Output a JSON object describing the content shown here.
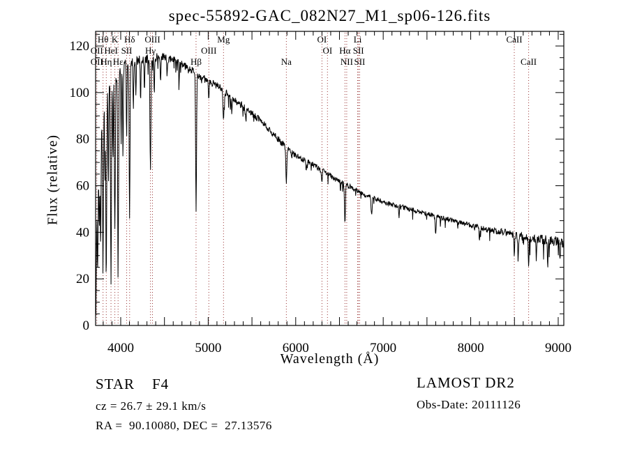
{
  "chart_data": {
    "type": "line",
    "title": "spec-55892-GAC_082N27_M1_sp06-126.fits",
    "xlabel": "Wavelength (Å)",
    "ylabel": "Flux (relative)",
    "x_range": [
      3713,
      9064
    ],
    "y_range": [
      0,
      126
    ],
    "x_ticks": [
      4000,
      5000,
      6000,
      7000,
      8000,
      9000
    ],
    "x_minor_tick_step": 100,
    "y_ticks": [
      0,
      20,
      40,
      60,
      80,
      100,
      120
    ],
    "y_minor_tick_step": 5,
    "grid": false,
    "legend": "none",
    "series_color": "#000000",
    "marker_line_color": "#993333",
    "background_color": "#ffffff",
    "continuum_anchors": [
      [
        3713,
        42,
        22
      ],
      [
        3725,
        55,
        18
      ],
      [
        3745,
        68,
        14
      ],
      [
        3775,
        82,
        13
      ],
      [
        3805,
        95,
        12
      ],
      [
        3840,
        101,
        11
      ],
      [
        3880,
        104,
        10
      ],
      [
        3920,
        107,
        9
      ],
      [
        3960,
        108,
        8
      ],
      [
        4000,
        110,
        7
      ],
      [
        4060,
        112,
        6
      ],
      [
        4120,
        113,
        6
      ],
      [
        4200,
        114,
        5.5
      ],
      [
        4300,
        114.5,
        5.5
      ],
      [
        4400,
        115,
        5.5
      ],
      [
        4500,
        115,
        5
      ],
      [
        4600,
        114,
        4.5
      ],
      [
        4700,
        112,
        4.5
      ],
      [
        4800,
        110,
        4.5
      ],
      [
        4900,
        107,
        4.5
      ],
      [
        5000,
        105,
        4.5
      ],
      [
        5100,
        103,
        4.5
      ],
      [
        5200,
        100,
        4.5
      ],
      [
        5300,
        97,
        4.5
      ],
      [
        5400,
        94,
        4.5
      ],
      [
        5500,
        91,
        4
      ],
      [
        5600,
        88,
        4
      ],
      [
        5700,
        84,
        4
      ],
      [
        5800,
        80,
        4
      ],
      [
        5900,
        76,
        4
      ],
      [
        6000,
        73,
        3.5
      ],
      [
        6100,
        71,
        3.5
      ],
      [
        6200,
        69,
        3.5
      ],
      [
        6300,
        66.5,
        3.5
      ],
      [
        6400,
        64,
        3.5
      ],
      [
        6500,
        62,
        3
      ],
      [
        6600,
        60,
        3
      ],
      [
        6700,
        58,
        3
      ],
      [
        6800,
        56,
        3
      ],
      [
        6900,
        54.5,
        3
      ],
      [
        7000,
        53,
        3
      ],
      [
        7100,
        52,
        3
      ],
      [
        7200,
        51,
        3
      ],
      [
        7300,
        50,
        3
      ],
      [
        7400,
        49,
        3
      ],
      [
        7500,
        48,
        3
      ],
      [
        7600,
        47,
        3
      ],
      [
        7700,
        46,
        3
      ],
      [
        7800,
        45,
        3
      ],
      [
        7900,
        44,
        3
      ],
      [
        8000,
        43,
        3
      ],
      [
        8100,
        42,
        3.2
      ],
      [
        8200,
        41,
        3.5
      ],
      [
        8300,
        40.5,
        4
      ],
      [
        8400,
        40,
        4.5
      ],
      [
        8500,
        39,
        5
      ],
      [
        8600,
        38,
        5
      ],
      [
        8700,
        37.5,
        5
      ],
      [
        8800,
        37,
        5.5
      ],
      [
        8900,
        36.5,
        6
      ],
      [
        9000,
        36,
        6
      ],
      [
        9064,
        35,
        6
      ]
    ],
    "absorption_lines": [
      [
        3716,
        40,
        5
      ],
      [
        3737,
        40,
        5
      ],
      [
        3756,
        35,
        4
      ],
      [
        3771,
        50,
        4
      ],
      [
        3798,
        62,
        5
      ],
      [
        3820,
        35,
        4
      ],
      [
        3835,
        78,
        5
      ],
      [
        3860,
        40,
        4
      ],
      [
        3889,
        88,
        5
      ],
      [
        3912,
        35,
        4
      ],
      [
        3933,
        68,
        5
      ],
      [
        3970,
        87,
        5
      ],
      [
        4005,
        30,
        4
      ],
      [
        4026,
        38,
        4
      ],
      [
        4068,
        32,
        4
      ],
      [
        4101,
        66,
        5
      ],
      [
        4144,
        22,
        4
      ],
      [
        4173,
        15,
        4
      ],
      [
        4227,
        18,
        4
      ],
      [
        4271,
        12,
        4
      ],
      [
        4340,
        48,
        5
      ],
      [
        4383,
        16,
        4
      ],
      [
        4455,
        9,
        4
      ],
      [
        4530,
        8,
        4
      ],
      [
        4668,
        7,
        4
      ],
      [
        4861,
        60,
        5
      ],
      [
        5007,
        7,
        4
      ],
      [
        5175,
        13,
        6
      ],
      [
        5270,
        8,
        4
      ],
      [
        5430,
        6,
        4
      ],
      [
        5893,
        16,
        5
      ],
      [
        6120,
        5,
        4
      ],
      [
        6300,
        6,
        4
      ],
      [
        6563,
        18,
        5
      ],
      [
        6867,
        8,
        6
      ],
      [
        7180,
        5,
        4
      ],
      [
        7600,
        7,
        6
      ],
      [
        8100,
        5,
        4
      ],
      [
        8498,
        9,
        4
      ],
      [
        8542,
        11,
        4
      ],
      [
        8662,
        12,
        4
      ],
      [
        8750,
        9,
        4
      ],
      [
        8880,
        10,
        4
      ],
      [
        9020,
        9,
        4
      ]
    ],
    "spectral_line_labels": [
      {
        "label": "Hθ",
        "wl": 3798,
        "row": 1
      },
      {
        "label": "K",
        "wl": 3933,
        "row": 1
      },
      {
        "label": "Hδ",
        "wl": 4102,
        "row": 1
      },
      {
        "label": "OIII",
        "wl": 4363,
        "row": 1
      },
      {
        "label": "Mg",
        "wl": 5175,
        "row": 1
      },
      {
        "label": "OI",
        "wl": 6300,
        "row": 1
      },
      {
        "label": "Li",
        "wl": 6708,
        "row": 1
      },
      {
        "label": "CaII",
        "wl": 8498,
        "row": 1
      },
      {
        "label": "OII",
        "wl": 3727,
        "row": 2
      },
      {
        "label": "HeI",
        "wl": 3889,
        "row": 2
      },
      {
        "label": "SII",
        "wl": 4068,
        "row": 2
      },
      {
        "label": "Hγ",
        "wl": 4340,
        "row": 2
      },
      {
        "label": "OIII",
        "wl": 5007,
        "row": 2
      },
      {
        "label": "OI",
        "wl": 6363,
        "row": 2
      },
      {
        "label": "Hα",
        "wl": 6563,
        "row": 2
      },
      {
        "label": "SII",
        "wl": 6717,
        "row": 2
      },
      {
        "label": "OII",
        "wl": 3727,
        "row": 3
      },
      {
        "label": "Hη",
        "wl": 3835,
        "row": 3
      },
      {
        "label": "Hε",
        "wl": 3970,
        "row": 3
      },
      {
        "label": "Hβ",
        "wl": 4861,
        "row": 3
      },
      {
        "label": "Na",
        "wl": 5893,
        "row": 3
      },
      {
        "label": "NII",
        "wl": 6583,
        "row": 3
      },
      {
        "label": "SII",
        "wl": 6731,
        "row": 3
      },
      {
        "label": "CaII",
        "wl": 8662,
        "row": 3
      }
    ]
  },
  "footer": {
    "object_class": "STAR    F4",
    "cz": "cz = 26.7 ± 29.1 km/s",
    "ra_dec": "RA =  90.10080, DEC =  27.13576",
    "survey": "LAMOST DR2",
    "obs_date": "Obs-Date: 20111126"
  }
}
